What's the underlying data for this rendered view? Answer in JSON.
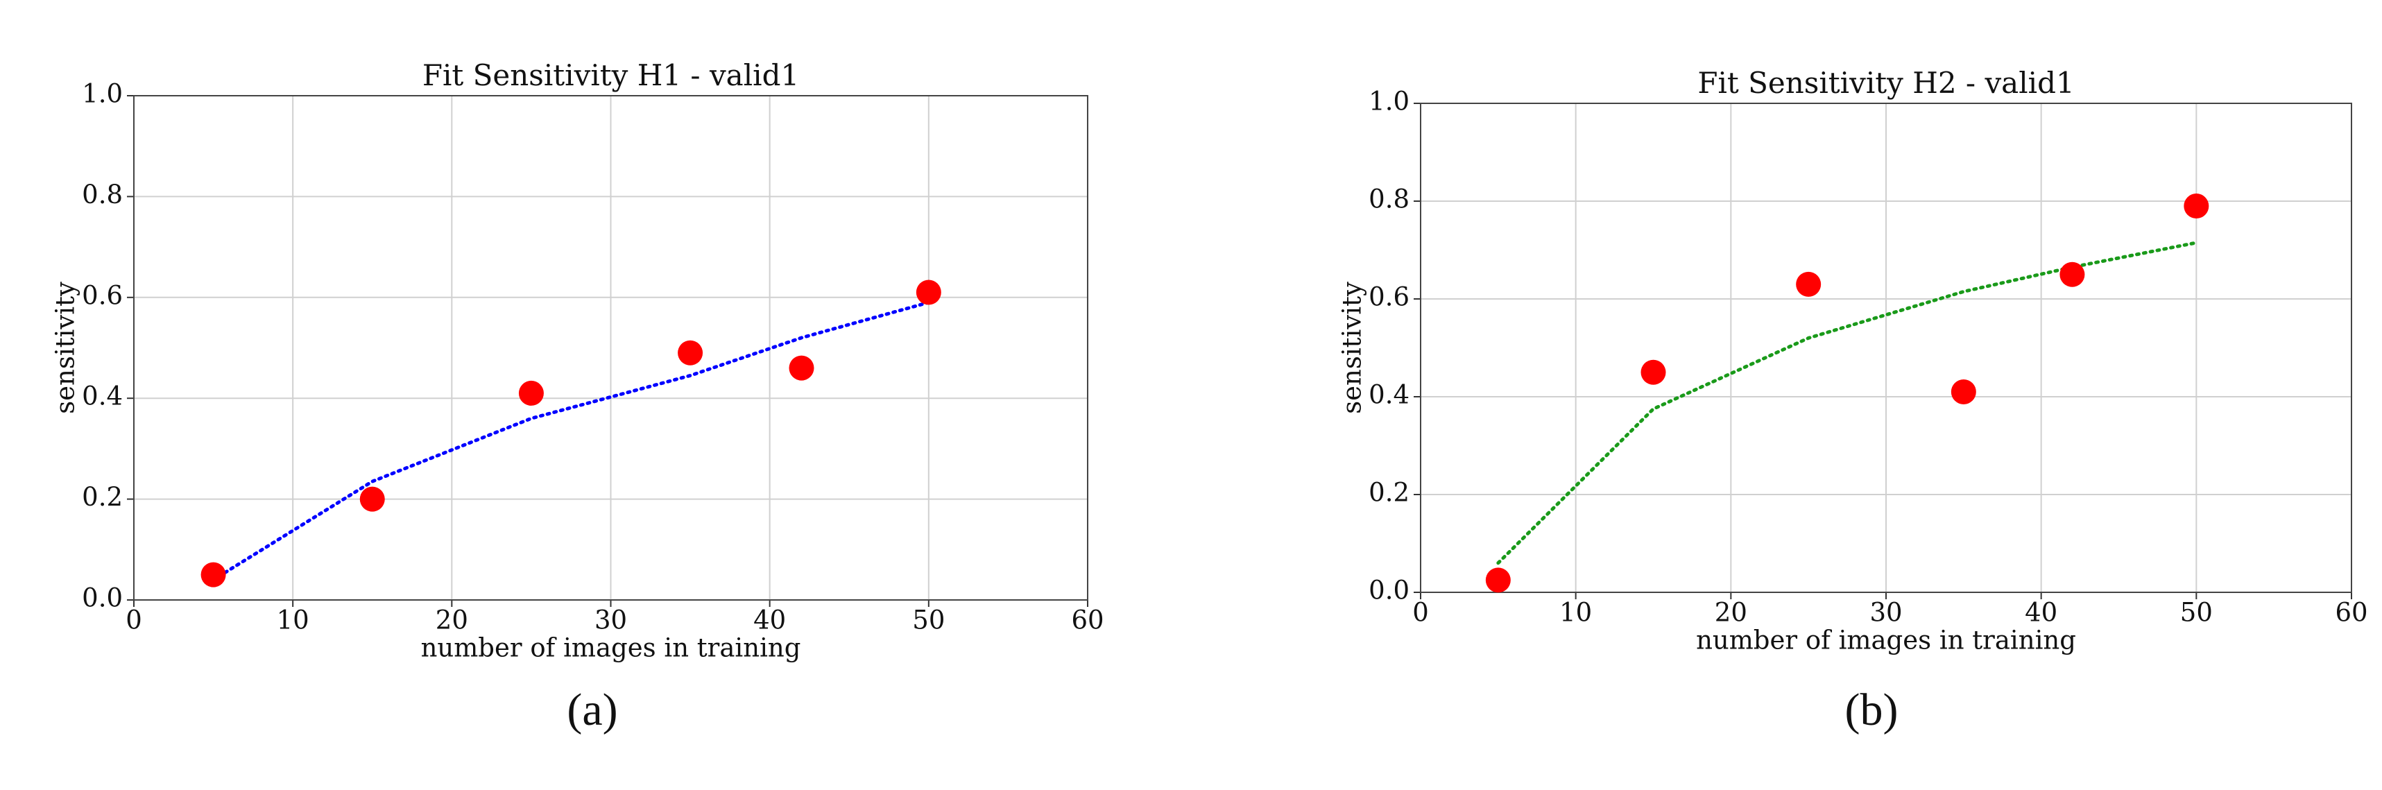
{
  "chart_data": [
    {
      "type": "scatter",
      "title": "Fit Sensitivity H1 - valid1",
      "caption": "(a)",
      "xlabel": "number of images in training",
      "ylabel": "sensitivity",
      "x": [
        5,
        15,
        25,
        35,
        42,
        50
      ],
      "series": [
        {
          "kind": "scatter",
          "color": "#ff0000",
          "values": [
            0.05,
            0.2,
            0.41,
            0.49,
            0.46,
            0.61
          ]
        },
        {
          "kind": "line",
          "dash": "dotted",
          "color": "#0000ff",
          "values": [
            0.04,
            0.235,
            0.36,
            0.445,
            0.52,
            0.59
          ]
        }
      ],
      "xlim": [
        0,
        60
      ],
      "xticks": [
        0,
        10,
        20,
        30,
        40,
        50,
        60
      ],
      "ylim": [
        0,
        1
      ],
      "yticks": [
        {
          "value": 0,
          "label": "0.0"
        },
        0.2,
        0.4,
        0.6,
        0.8,
        {
          "value": 1,
          "label": "1.0"
        }
      ],
      "grid": true
    },
    {
      "type": "scatter",
      "title": "Fit Sensitivity H2 - valid1",
      "caption": "(b)",
      "xlabel": "number of images in training",
      "ylabel": "sensitivity",
      "x": [
        5,
        15,
        25,
        35,
        42,
        50
      ],
      "series": [
        {
          "kind": "scatter",
          "color": "#ff0000",
          "values": [
            0.025,
            0.45,
            0.63,
            0.41,
            0.65,
            0.79
          ]
        },
        {
          "kind": "line",
          "dash": "dotted",
          "color": "#1a9a1a",
          "values": [
            0.06,
            0.375,
            0.52,
            0.615,
            0.665,
            0.715
          ]
        }
      ],
      "xlim": [
        0,
        60
      ],
      "xticks": [
        0,
        10,
        20,
        30,
        40,
        50,
        60
      ],
      "ylim": [
        0,
        1
      ],
      "yticks": [
        {
          "value": 0,
          "label": "0.0"
        },
        0.2,
        0.4,
        0.6,
        0.8,
        {
          "value": 1,
          "label": "1.0"
        }
      ],
      "grid": true
    }
  ]
}
